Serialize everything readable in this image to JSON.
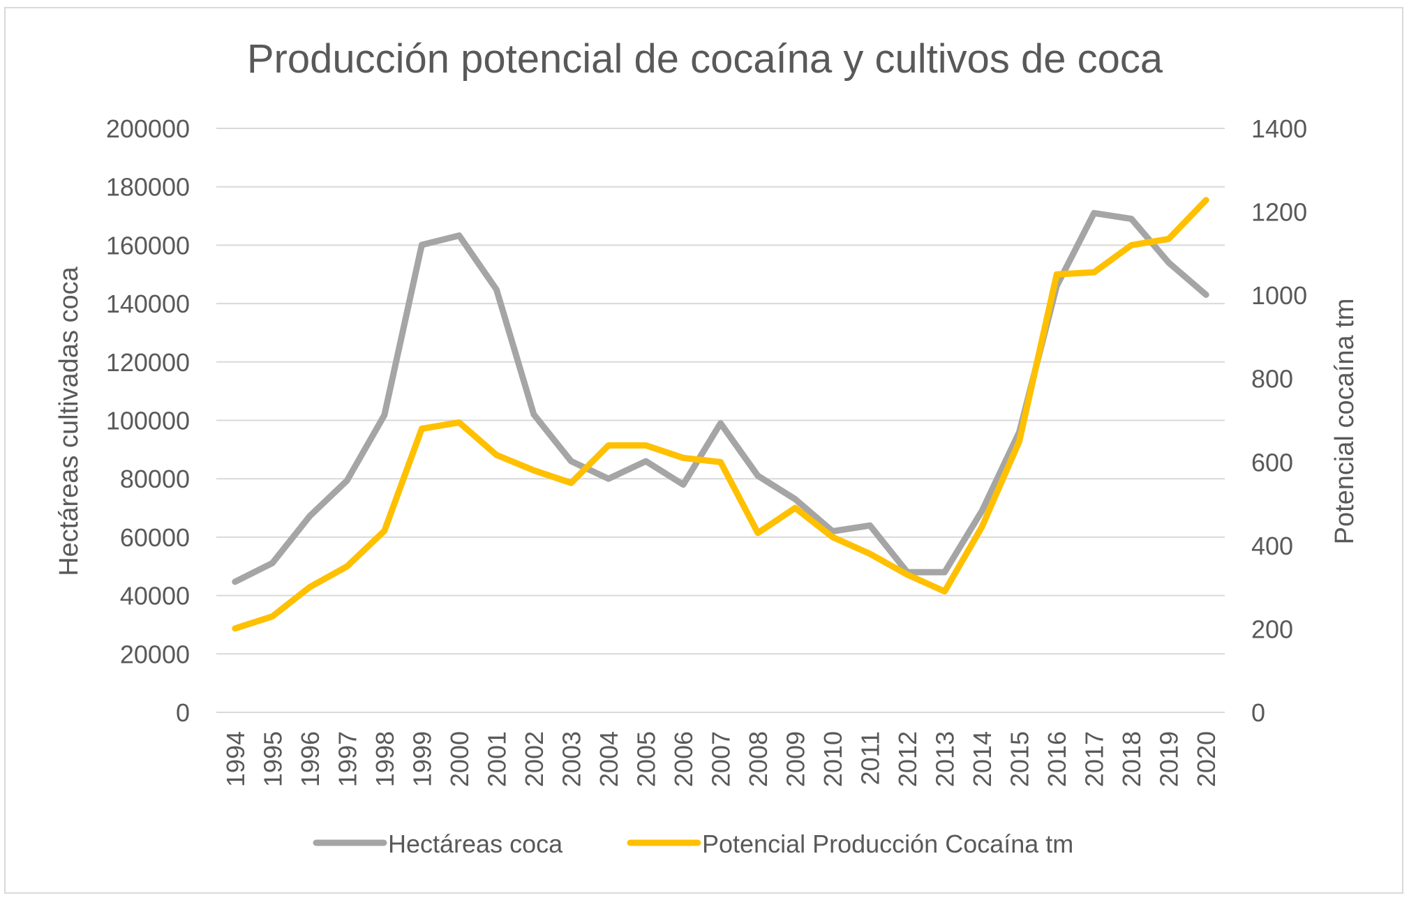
{
  "chart_data": {
    "type": "line",
    "title": "Producción potencial de cocaína y cultivos de coca",
    "xlabel": "",
    "ylabel_left": "Hectáreas cultivadas coca",
    "ylabel_right": "Potencial cocaína tm",
    "x": [
      "1994",
      "1995",
      "1996",
      "1997",
      "1998",
      "1999",
      "2000",
      "2001",
      "2002",
      "2003",
      "2004",
      "2005",
      "2006",
      "2007",
      "2008",
      "2009",
      "2010",
      "2011",
      "2012",
      "2013",
      "2014",
      "2015",
      "2016",
      "2017",
      "2018",
      "2019",
      "2020"
    ],
    "yticks_left": [
      "0",
      "20000",
      "40000",
      "60000",
      "80000",
      "100000",
      "120000",
      "140000",
      "160000",
      "180000",
      "200000"
    ],
    "yticks_right": [
      "0",
      "200",
      "400",
      "600",
      "800",
      "1000",
      "1200",
      "1400"
    ],
    "ylim_left": [
      0,
      200000
    ],
    "ylim_right": [
      0,
      1400
    ],
    "grid": true,
    "legend_position": "bottom",
    "series": [
      {
        "name": "Hectáreas coca",
        "axis": "left",
        "color": "#a5a5a5",
        "values": [
          44700,
          51100,
          67200,
          79400,
          101800,
          160100,
          163300,
          144800,
          102000,
          86000,
          80000,
          86000,
          78000,
          99000,
          81000,
          73000,
          62000,
          64000,
          48000,
          48000,
          69000,
          96000,
          146000,
          171000,
          169000,
          154000,
          143000
        ]
      },
      {
        "name": "Potencial Producción Cocaína tm",
        "axis": "right",
        "color": "#ffc000",
        "values": [
          201,
          230,
          300,
          350,
          435,
          680,
          695,
          617,
          580,
          550,
          640,
          640,
          610,
          600,
          430,
          490,
          420,
          380,
          330,
          290,
          445,
          650,
          1050,
          1055,
          1120,
          1135,
          1228
        ]
      }
    ]
  }
}
